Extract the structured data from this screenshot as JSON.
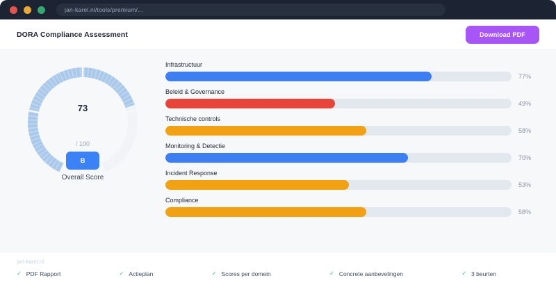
{
  "browser": {
    "url": "jan-karel.nl/tools/premium/...",
    "traffic_light_colors": {
      "close": "#e0564d",
      "minimize": "#e9a838",
      "zoom": "#35a96f"
    }
  },
  "header": {
    "title": "DORA Compliance Assessment",
    "download_button_label": "Download PDF",
    "accent_color": "#a855f7"
  },
  "gauge": {
    "score": "73",
    "denominator": "/ 100",
    "grade": "B",
    "label": "Overall Score",
    "badge_color": "#3b82f6"
  },
  "footer": {
    "brand": "jan-karel.nl",
    "check_glyph": "✓",
    "check_color": "#2fbf8f",
    "items": [
      {
        "icon": "check-icon",
        "label": "PDF Rapport"
      },
      {
        "icon": "check-icon",
        "label": "Actieplan"
      },
      {
        "icon": "check-icon",
        "label": "Scores per domein"
      },
      {
        "icon": "check-icon",
        "label": "Concrete aanbevelingen"
      },
      {
        "icon": "check-icon",
        "label": "3 beurten"
      }
    ]
  },
  "chart_data": [
    {
      "type": "gauge",
      "title": "Overall Score",
      "value": 73,
      "max": 100,
      "grade": "B",
      "fill_color": "#a9c8ea",
      "track_color": "#f1f3f6",
      "start_angle_deg": 205,
      "sweep_deg": 310
    },
    {
      "type": "bar",
      "orientation": "horizontal",
      "categories": [
        "Infrastructuur",
        "Beleid & Governance",
        "Technische controls",
        "Monitoring & Detectie",
        "Incident Response",
        "Compliance"
      ],
      "values": [
        77,
        49,
        58,
        70,
        53,
        58
      ],
      "value_labels": [
        "77%",
        "49%",
        "58%",
        "70%",
        "53%",
        "58%"
      ],
      "unit": "%",
      "xlim": [
        0,
        100
      ],
      "bar_colors": [
        "#3d7ff2",
        "#e9443a",
        "#f2a014",
        "#3d7ff2",
        "#f2a014",
        "#f2a014"
      ],
      "track_color": "#e3e8ef",
      "grid": false,
      "legend": false
    }
  ]
}
